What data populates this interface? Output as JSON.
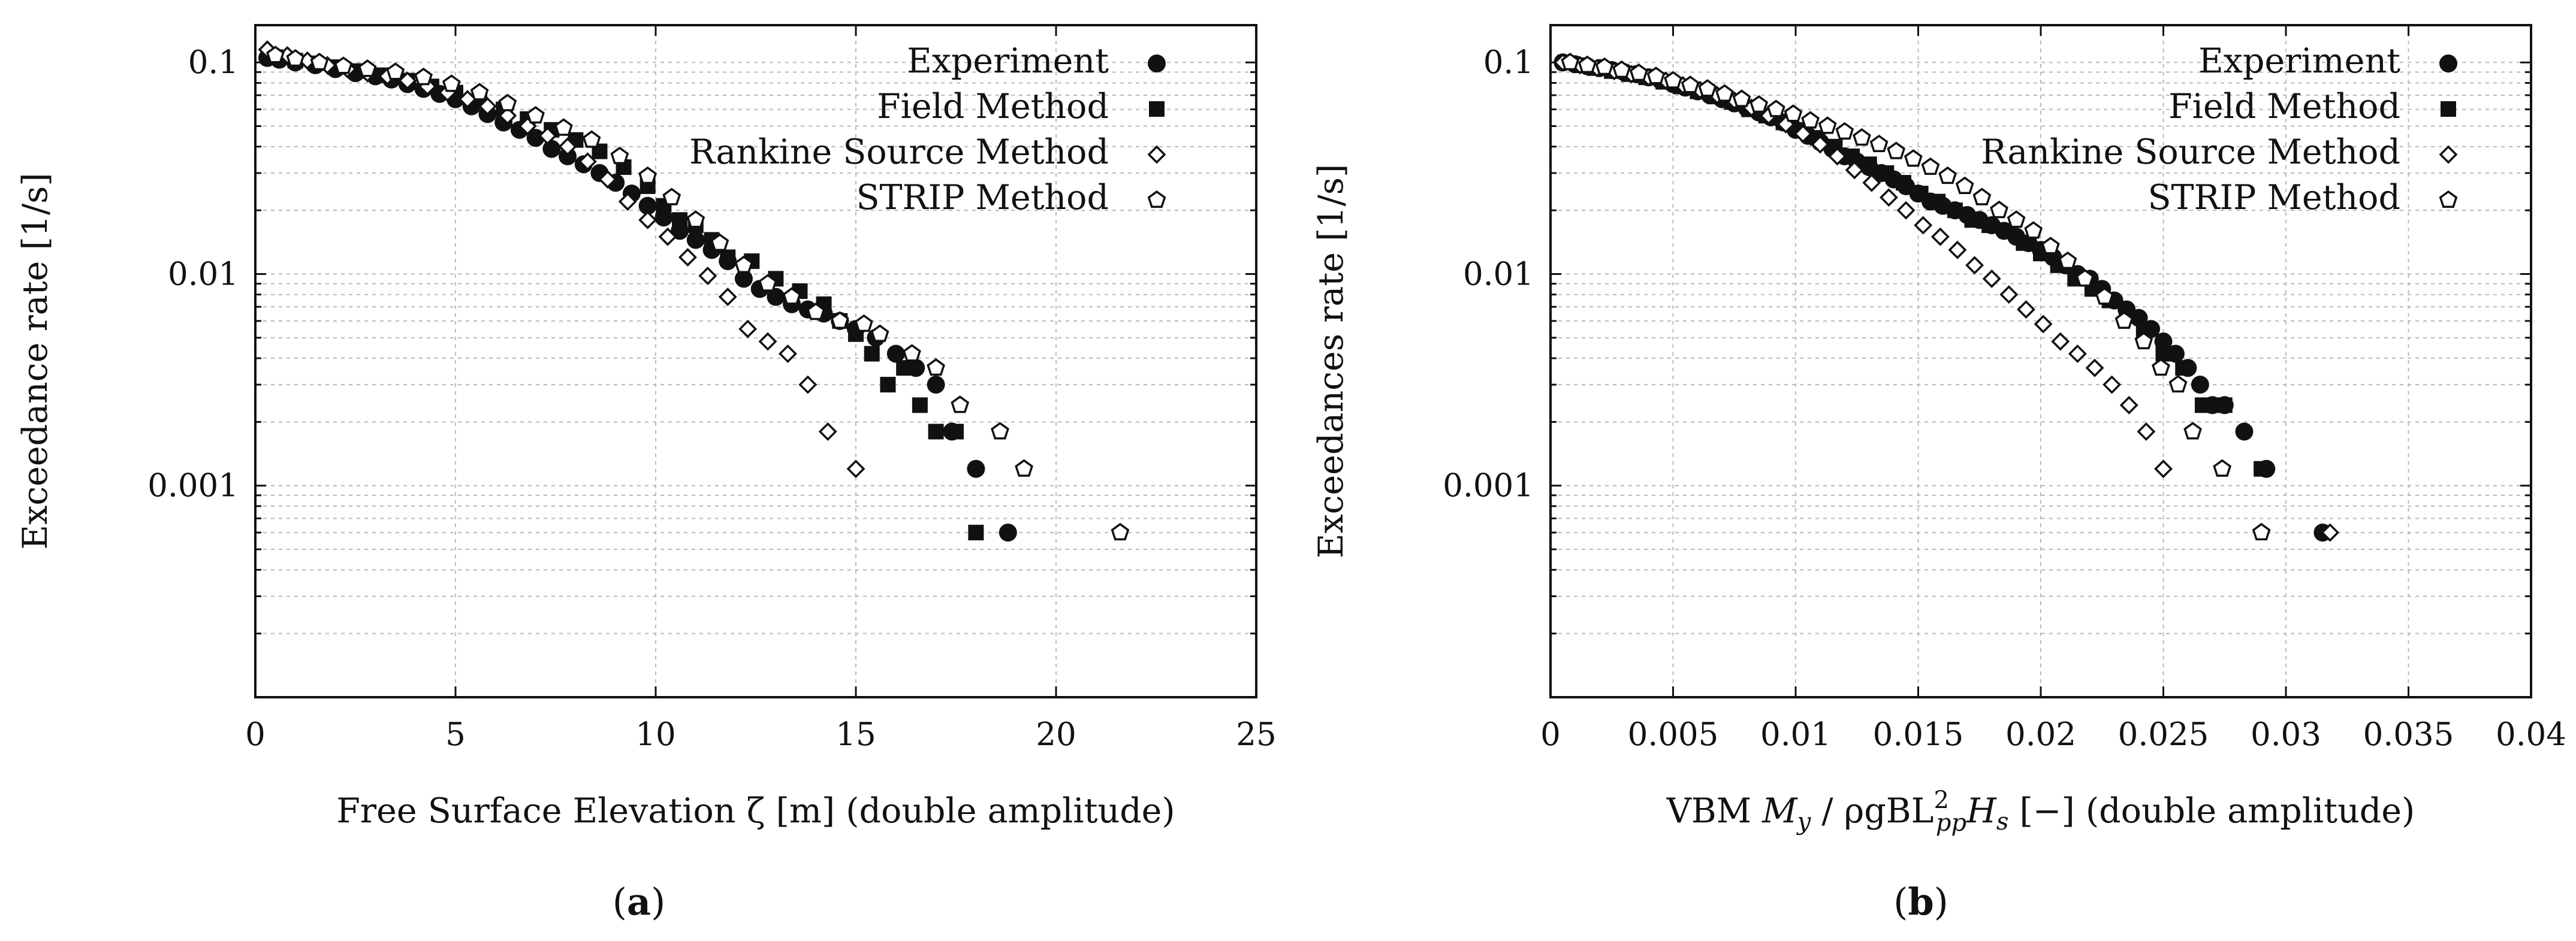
{
  "figure": {
    "panels": [
      {
        "caption_pre": "(",
        "caption_letter": "a",
        "caption_post": ")"
      },
      {
        "caption_pre": "(",
        "caption_letter": "b",
        "caption_post": ")"
      }
    ]
  },
  "chart_data": [
    {
      "type": "scatter",
      "xlabel": "Free Surface Elevation ζ [m] (double amplitude)",
      "ylabel": "Exceedance rate [1/s]",
      "xscale": "linear",
      "yscale": "log",
      "xlim": [
        0,
        25
      ],
      "ylim": [
        0.0001,
        0.15
      ],
      "x_ticks": [
        0,
        5,
        10,
        15,
        20,
        25
      ],
      "x_tick_labels": [
        "0",
        "5",
        "10",
        "15",
        "20",
        "25"
      ],
      "y_ticks": [
        0.001,
        0.01,
        0.1
      ],
      "y_tick_labels": [
        "0.001",
        "0.01",
        "0.1"
      ],
      "grid": true,
      "legend_position": "top-right",
      "series": [
        {
          "name": "Experiment",
          "marker": "circle",
          "x": [
            0.3,
            0.6,
            1.0,
            1.5,
            2.0,
            2.5,
            3.0,
            3.4,
            3.8,
            4.2,
            4.6,
            5.0,
            5.4,
            5.8,
            6.2,
            6.6,
            7.0,
            7.4,
            7.8,
            8.2,
            8.6,
            9.0,
            9.4,
            9.8,
            10.2,
            10.6,
            11.0,
            11.4,
            11.8,
            12.2,
            12.6,
            13.0,
            13.4,
            13.8,
            14.2,
            14.6,
            15.0,
            15.5,
            16.0,
            16.5,
            17.0,
            17.4,
            18.0,
            18.8
          ],
          "y": [
            0.105,
            0.103,
            0.1,
            0.097,
            0.093,
            0.089,
            0.086,
            0.083,
            0.079,
            0.075,
            0.071,
            0.067,
            0.062,
            0.057,
            0.052,
            0.048,
            0.044,
            0.039,
            0.036,
            0.033,
            0.03,
            0.027,
            0.024,
            0.021,
            0.0185,
            0.016,
            0.0145,
            0.013,
            0.0115,
            0.0095,
            0.0085,
            0.0078,
            0.0072,
            0.0068,
            0.0065,
            0.006,
            0.0055,
            0.005,
            0.0042,
            0.0036,
            0.003,
            0.0018,
            0.0012,
            0.0006
          ]
        },
        {
          "name": "Field Method",
          "marker": "square",
          "x": [
            0.5,
            1.0,
            1.5,
            2.0,
            2.6,
            3.2,
            3.8,
            4.4,
            5.0,
            5.6,
            6.2,
            6.8,
            7.4,
            8.0,
            8.6,
            9.2,
            9.8,
            10.2,
            10.6,
            11.0,
            11.4,
            11.8,
            12.4,
            13.0,
            13.6,
            14.2,
            14.6,
            15.0,
            15.4,
            15.8,
            16.2,
            16.6,
            17.0,
            17.5,
            18.0
          ],
          "y": [
            0.106,
            0.102,
            0.099,
            0.095,
            0.091,
            0.087,
            0.082,
            0.077,
            0.072,
            0.066,
            0.06,
            0.054,
            0.048,
            0.043,
            0.038,
            0.032,
            0.026,
            0.021,
            0.018,
            0.017,
            0.0145,
            0.012,
            0.0115,
            0.0095,
            0.0083,
            0.0072,
            0.006,
            0.0052,
            0.0042,
            0.003,
            0.0036,
            0.0024,
            0.0018,
            0.0018,
            0.0006
          ]
        },
        {
          "name": "Rankine Source Method",
          "marker": "diamond",
          "x": [
            0.3,
            0.8,
            1.3,
            1.8,
            2.3,
            2.8,
            3.3,
            3.8,
            4.3,
            4.8,
            5.3,
            5.8,
            6.3,
            6.8,
            7.3,
            7.8,
            8.3,
            8.8,
            9.3,
            9.8,
            10.3,
            10.8,
            11.3,
            11.8,
            12.3,
            12.8,
            13.3,
            13.8,
            14.3,
            15.0
          ],
          "y": [
            0.115,
            0.108,
            0.102,
            0.097,
            0.093,
            0.089,
            0.086,
            0.082,
            0.077,
            0.072,
            0.067,
            0.062,
            0.056,
            0.05,
            0.045,
            0.04,
            0.034,
            0.028,
            0.022,
            0.018,
            0.015,
            0.012,
            0.0098,
            0.0078,
            0.0055,
            0.0048,
            0.0042,
            0.003,
            0.0018,
            0.0012
          ]
        },
        {
          "name": "STRIP Method",
          "marker": "pentagon",
          "x": [
            0.5,
            1.0,
            1.6,
            2.2,
            2.8,
            3.5,
            4.2,
            4.9,
            5.6,
            6.3,
            7.0,
            7.7,
            8.4,
            9.1,
            9.8,
            10.4,
            11.0,
            11.6,
            12.2,
            12.8,
            13.4,
            14.0,
            14.6,
            15.2,
            15.6,
            16.4,
            17.0,
            17.6,
            18.6,
            19.2,
            21.6
          ],
          "y": [
            0.108,
            0.104,
            0.1,
            0.096,
            0.093,
            0.09,
            0.085,
            0.079,
            0.072,
            0.064,
            0.056,
            0.049,
            0.043,
            0.036,
            0.029,
            0.023,
            0.018,
            0.014,
            0.011,
            0.009,
            0.0078,
            0.0066,
            0.006,
            0.0058,
            0.0052,
            0.0042,
            0.0036,
            0.0024,
            0.0018,
            0.0012,
            0.0006
          ]
        }
      ]
    },
    {
      "type": "scatter",
      "xlabel_pre": "VBM ",
      "xlabel_M": "M",
      "xlabel_Msub": "y",
      "xlabel_mid": " / ρgBL",
      "xlabel_Lsup": "2",
      "xlabel_Lsub": "pp",
      "xlabel_H": "H",
      "xlabel_Hsub": "s",
      "xlabel_post": " [−] (double amplitude)",
      "ylabel": "Exceedances rate [1/s]",
      "xscale": "linear",
      "yscale": "log",
      "xlim": [
        0,
        0.04
      ],
      "ylim": [
        0.0001,
        0.15
      ],
      "x_ticks": [
        0,
        0.005,
        0.01,
        0.015,
        0.02,
        0.025,
        0.03,
        0.035,
        0.04
      ],
      "x_tick_labels": [
        "0",
        "0.005",
        "0.01",
        "0.015",
        "0.02",
        "0.025",
        "0.03",
        "0.035",
        "0.04"
      ],
      "y_ticks": [
        0.001,
        0.01,
        0.1
      ],
      "y_tick_labels": [
        "0.001",
        "0.01",
        "0.1"
      ],
      "grid": true,
      "legend_position": "top-right",
      "series": [
        {
          "name": "Experiment",
          "marker": "circle",
          "x": [
            0.0005,
            0.001,
            0.0015,
            0.002,
            0.0025,
            0.003,
            0.0035,
            0.004,
            0.0045,
            0.005,
            0.0055,
            0.006,
            0.0065,
            0.007,
            0.0075,
            0.008,
            0.0085,
            0.009,
            0.0095,
            0.01,
            0.0105,
            0.011,
            0.0115,
            0.012,
            0.0125,
            0.013,
            0.0135,
            0.014,
            0.0145,
            0.015,
            0.0155,
            0.016,
            0.0165,
            0.017,
            0.0175,
            0.018,
            0.0185,
            0.019,
            0.0195,
            0.02,
            0.0205,
            0.021,
            0.0215,
            0.022,
            0.0225,
            0.023,
            0.0235,
            0.024,
            0.0245,
            0.025,
            0.0255,
            0.026,
            0.0265,
            0.027,
            0.0275,
            0.0283,
            0.0292,
            0.0315
          ],
          "y": [
            0.1,
            0.098,
            0.096,
            0.094,
            0.092,
            0.09,
            0.088,
            0.085,
            0.082,
            0.079,
            0.076,
            0.073,
            0.07,
            0.067,
            0.064,
            0.061,
            0.058,
            0.055,
            0.052,
            0.048,
            0.045,
            0.042,
            0.039,
            0.036,
            0.034,
            0.032,
            0.03,
            0.028,
            0.026,
            0.024,
            0.022,
            0.021,
            0.02,
            0.019,
            0.018,
            0.017,
            0.016,
            0.015,
            0.014,
            0.013,
            0.012,
            0.011,
            0.01,
            0.0095,
            0.0085,
            0.0075,
            0.0068,
            0.0062,
            0.0055,
            0.0048,
            0.0042,
            0.0036,
            0.003,
            0.0024,
            0.0024,
            0.0018,
            0.0012,
            0.0006
          ]
        },
        {
          "name": "Field Method",
          "marker": "square",
          "x": [
            0.0006,
            0.0012,
            0.0018,
            0.0025,
            0.0032,
            0.0039,
            0.0046,
            0.0053,
            0.006,
            0.0067,
            0.0074,
            0.0081,
            0.0088,
            0.0095,
            0.0102,
            0.0109,
            0.0116,
            0.0123,
            0.013,
            0.0137,
            0.0144,
            0.0151,
            0.0158,
            0.0165,
            0.0172,
            0.0179,
            0.0186,
            0.0193,
            0.02,
            0.0207,
            0.0214,
            0.0221,
            0.0228,
            0.0235,
            0.0242,
            0.025,
            0.0258,
            0.0266,
            0.0275,
            0.029
          ],
          "y": [
            0.1,
            0.097,
            0.094,
            0.091,
            0.088,
            0.085,
            0.081,
            0.077,
            0.073,
            0.069,
            0.065,
            0.06,
            0.056,
            0.052,
            0.048,
            0.044,
            0.04,
            0.036,
            0.033,
            0.03,
            0.027,
            0.024,
            0.022,
            0.02,
            0.018,
            0.017,
            0.016,
            0.014,
            0.0125,
            0.011,
            0.0095,
            0.0085,
            0.0075,
            0.0065,
            0.0052,
            0.0042,
            0.0036,
            0.0024,
            0.0024,
            0.0012
          ]
        },
        {
          "name": "Rankine Source Method",
          "marker": "diamond",
          "x": [
            0.0005,
            0.0012,
            0.0019,
            0.0026,
            0.0033,
            0.004,
            0.0047,
            0.0054,
            0.0061,
            0.0068,
            0.0075,
            0.0082,
            0.0089,
            0.0096,
            0.0103,
            0.011,
            0.0117,
            0.0124,
            0.0131,
            0.0138,
            0.0145,
            0.0152,
            0.0159,
            0.0166,
            0.0173,
            0.018,
            0.0187,
            0.0194,
            0.0201,
            0.0208,
            0.0215,
            0.0222,
            0.0229,
            0.0236,
            0.0243,
            0.025,
            0.0318
          ],
          "y": [
            0.1,
            0.097,
            0.094,
            0.091,
            0.088,
            0.085,
            0.082,
            0.078,
            0.074,
            0.07,
            0.066,
            0.061,
            0.056,
            0.051,
            0.046,
            0.041,
            0.036,
            0.031,
            0.027,
            0.023,
            0.02,
            0.017,
            0.015,
            0.013,
            0.011,
            0.0095,
            0.008,
            0.0068,
            0.0058,
            0.0048,
            0.0042,
            0.0036,
            0.003,
            0.0024,
            0.0018,
            0.0012,
            0.0006
          ]
        },
        {
          "name": "STRIP Method",
          "marker": "pentagon",
          "x": [
            0.0008,
            0.0015,
            0.0022,
            0.0029,
            0.0036,
            0.0043,
            0.005,
            0.0057,
            0.0064,
            0.0071,
            0.0078,
            0.0085,
            0.0092,
            0.0099,
            0.0106,
            0.0113,
            0.012,
            0.0127,
            0.0134,
            0.0141,
            0.0148,
            0.0155,
            0.0162,
            0.0169,
            0.0176,
            0.0183,
            0.019,
            0.0197,
            0.0204,
            0.0211,
            0.0218,
            0.0226,
            0.0234,
            0.0242,
            0.0249,
            0.0256,
            0.0262,
            0.0274,
            0.029
          ],
          "y": [
            0.1,
            0.097,
            0.095,
            0.092,
            0.089,
            0.086,
            0.082,
            0.078,
            0.075,
            0.071,
            0.067,
            0.063,
            0.06,
            0.057,
            0.053,
            0.05,
            0.047,
            0.044,
            0.041,
            0.038,
            0.035,
            0.032,
            0.029,
            0.026,
            0.023,
            0.02,
            0.018,
            0.016,
            0.0135,
            0.0115,
            0.0095,
            0.0078,
            0.006,
            0.0048,
            0.0036,
            0.003,
            0.0018,
            0.0012,
            0.0006
          ]
        }
      ]
    }
  ]
}
